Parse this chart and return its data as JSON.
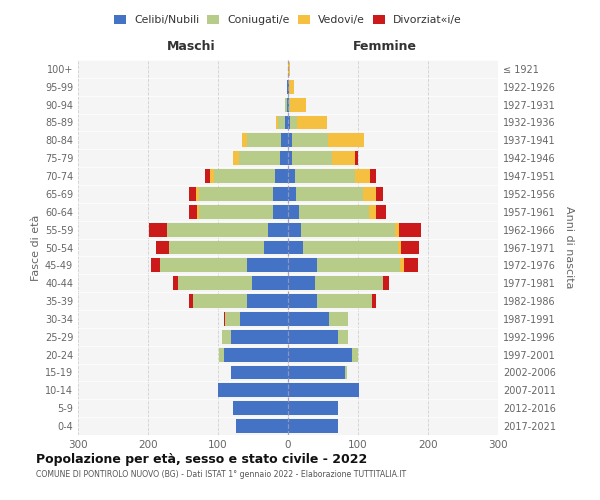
{
  "age_groups": [
    "0-4",
    "5-9",
    "10-14",
    "15-19",
    "20-24",
    "25-29",
    "30-34",
    "35-39",
    "40-44",
    "45-49",
    "50-54",
    "55-59",
    "60-64",
    "65-69",
    "70-74",
    "75-79",
    "80-84",
    "85-89",
    "90-94",
    "95-99",
    "100+"
  ],
  "birth_years": [
    "2017-2021",
    "2012-2016",
    "2007-2011",
    "2002-2006",
    "1997-2001",
    "1992-1996",
    "1987-1991",
    "1982-1986",
    "1977-1981",
    "1972-1976",
    "1967-1971",
    "1962-1966",
    "1957-1961",
    "1952-1956",
    "1947-1951",
    "1942-1946",
    "1937-1941",
    "1932-1936",
    "1927-1931",
    "1922-1926",
    "≤ 1921"
  ],
  "maschi": {
    "celibi": [
      75,
      78,
      100,
      82,
      92,
      82,
      68,
      58,
      52,
      58,
      35,
      28,
      22,
      22,
      18,
      12,
      10,
      4,
      2,
      1,
      0
    ],
    "coniugati": [
      0,
      0,
      0,
      0,
      6,
      12,
      22,
      78,
      105,
      125,
      135,
      145,
      105,
      105,
      88,
      58,
      48,
      10,
      3,
      0,
      0
    ],
    "vedovi": [
      0,
      0,
      0,
      0,
      0,
      0,
      0,
      0,
      0,
      0,
      0,
      0,
      3,
      5,
      5,
      8,
      8,
      3,
      0,
      0,
      0
    ],
    "divorziati": [
      0,
      0,
      0,
      0,
      0,
      0,
      2,
      5,
      8,
      12,
      18,
      25,
      12,
      10,
      8,
      0,
      0,
      0,
      0,
      0,
      0
    ]
  },
  "femmine": {
    "nubili": [
      72,
      72,
      102,
      82,
      92,
      72,
      58,
      42,
      38,
      42,
      22,
      18,
      15,
      12,
      10,
      5,
      5,
      3,
      1,
      1,
      0
    ],
    "coniugate": [
      0,
      0,
      0,
      2,
      8,
      14,
      28,
      78,
      98,
      118,
      135,
      135,
      100,
      95,
      85,
      58,
      52,
      10,
      2,
      0,
      0
    ],
    "vedove": [
      0,
      0,
      0,
      0,
      0,
      0,
      0,
      0,
      0,
      5,
      5,
      5,
      10,
      18,
      22,
      32,
      52,
      42,
      22,
      8,
      3
    ],
    "divorziate": [
      0,
      0,
      0,
      0,
      0,
      0,
      0,
      5,
      8,
      20,
      25,
      32,
      15,
      10,
      8,
      5,
      0,
      0,
      0,
      0,
      0
    ]
  },
  "colors": {
    "celibi": "#4472c4",
    "coniugati": "#b8cc8a",
    "vedovi": "#f5c040",
    "divorziati": "#cc1a1a"
  },
  "xlim": 300,
  "title": "Popolazione per età, sesso e stato civile - 2022",
  "subtitle": "COMUNE DI PONTIROLO NUOVO (BG) - Dati ISTAT 1° gennaio 2022 - Elaborazione TUTTITALIA.IT",
  "ylabel_left": "Fasce di età",
  "ylabel_right": "Anni di nascita",
  "xlabel_left": "Maschi",
  "xlabel_right": "Femmine",
  "legend_labels": [
    "Celibi/Nubili",
    "Coniugati/e",
    "Vedovi/e",
    "Divorziat«i/e"
  ],
  "bg_color": "#ffffff",
  "plot_bg_color": "#f5f5f5"
}
